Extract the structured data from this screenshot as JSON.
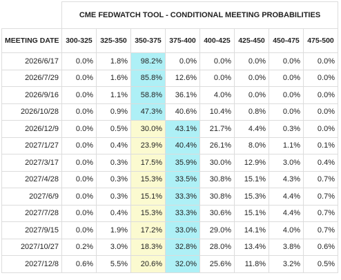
{
  "header": {
    "title": "CME FEDWATCH TOOL - CONDITIONAL MEETING PROBABILITIES"
  },
  "table": {
    "columns": [
      "MEETING DATE",
      "300-325",
      "325-350",
      "350-375",
      "375-400",
      "400-425",
      "425-450",
      "450-475",
      "475-500"
    ],
    "rows": [
      [
        "2026/6/17",
        "0.0%",
        "1.8%",
        "98.2%",
        "0.0%",
        "0.0%",
        "0.0%",
        "0.0%",
        "0.0%"
      ],
      [
        "2026/7/29",
        "0.0%",
        "1.6%",
        "85.8%",
        "12.6%",
        "0.0%",
        "0.0%",
        "0.0%",
        "0.0%"
      ],
      [
        "2026/9/16",
        "0.0%",
        "1.1%",
        "58.8%",
        "36.1%",
        "4.0%",
        "0.0%",
        "0.0%",
        "0.0%"
      ],
      [
        "2026/10/28",
        "0.0%",
        "0.9%",
        "47.3%",
        "40.6%",
        "10.4%",
        "0.8%",
        "0.0%",
        "0.0%"
      ],
      [
        "2026/12/9",
        "0.0%",
        "0.5%",
        "30.0%",
        "43.1%",
        "21.7%",
        "4.4%",
        "0.3%",
        "0.0%"
      ],
      [
        "2027/1/27",
        "0.0%",
        "0.4%",
        "23.9%",
        "40.4%",
        "26.1%",
        "8.0%",
        "1.1%",
        "0.1%"
      ],
      [
        "2027/3/17",
        "0.0%",
        "0.3%",
        "17.5%",
        "35.9%",
        "30.0%",
        "12.9%",
        "3.0%",
        "0.4%"
      ],
      [
        "2027/4/28",
        "0.0%",
        "0.3%",
        "15.3%",
        "33.5%",
        "30.8%",
        "15.1%",
        "4.3%",
        "0.7%"
      ],
      [
        "2027/6/9",
        "0.0%",
        "0.3%",
        "15.1%",
        "33.3%",
        "30.8%",
        "15.3%",
        "4.4%",
        "0.7%"
      ],
      [
        "2027/7/28",
        "0.0%",
        "0.4%",
        "15.3%",
        "33.3%",
        "30.6%",
        "15.1%",
        "4.4%",
        "0.7%"
      ],
      [
        "2027/9/15",
        "0.0%",
        "1.9%",
        "17.2%",
        "33.0%",
        "29.0%",
        "14.1%",
        "4.0%",
        "0.7%"
      ],
      [
        "2027/10/27",
        "0.2%",
        "3.0%",
        "18.3%",
        "32.8%",
        "28.0%",
        "13.4%",
        "3.8%",
        "0.6%"
      ],
      [
        "2027/12/8",
        "0.6%",
        "5.5%",
        "20.6%",
        "32.0%",
        "25.6%",
        "11.8%",
        "3.2%",
        "0.5%"
      ]
    ]
  }
}
